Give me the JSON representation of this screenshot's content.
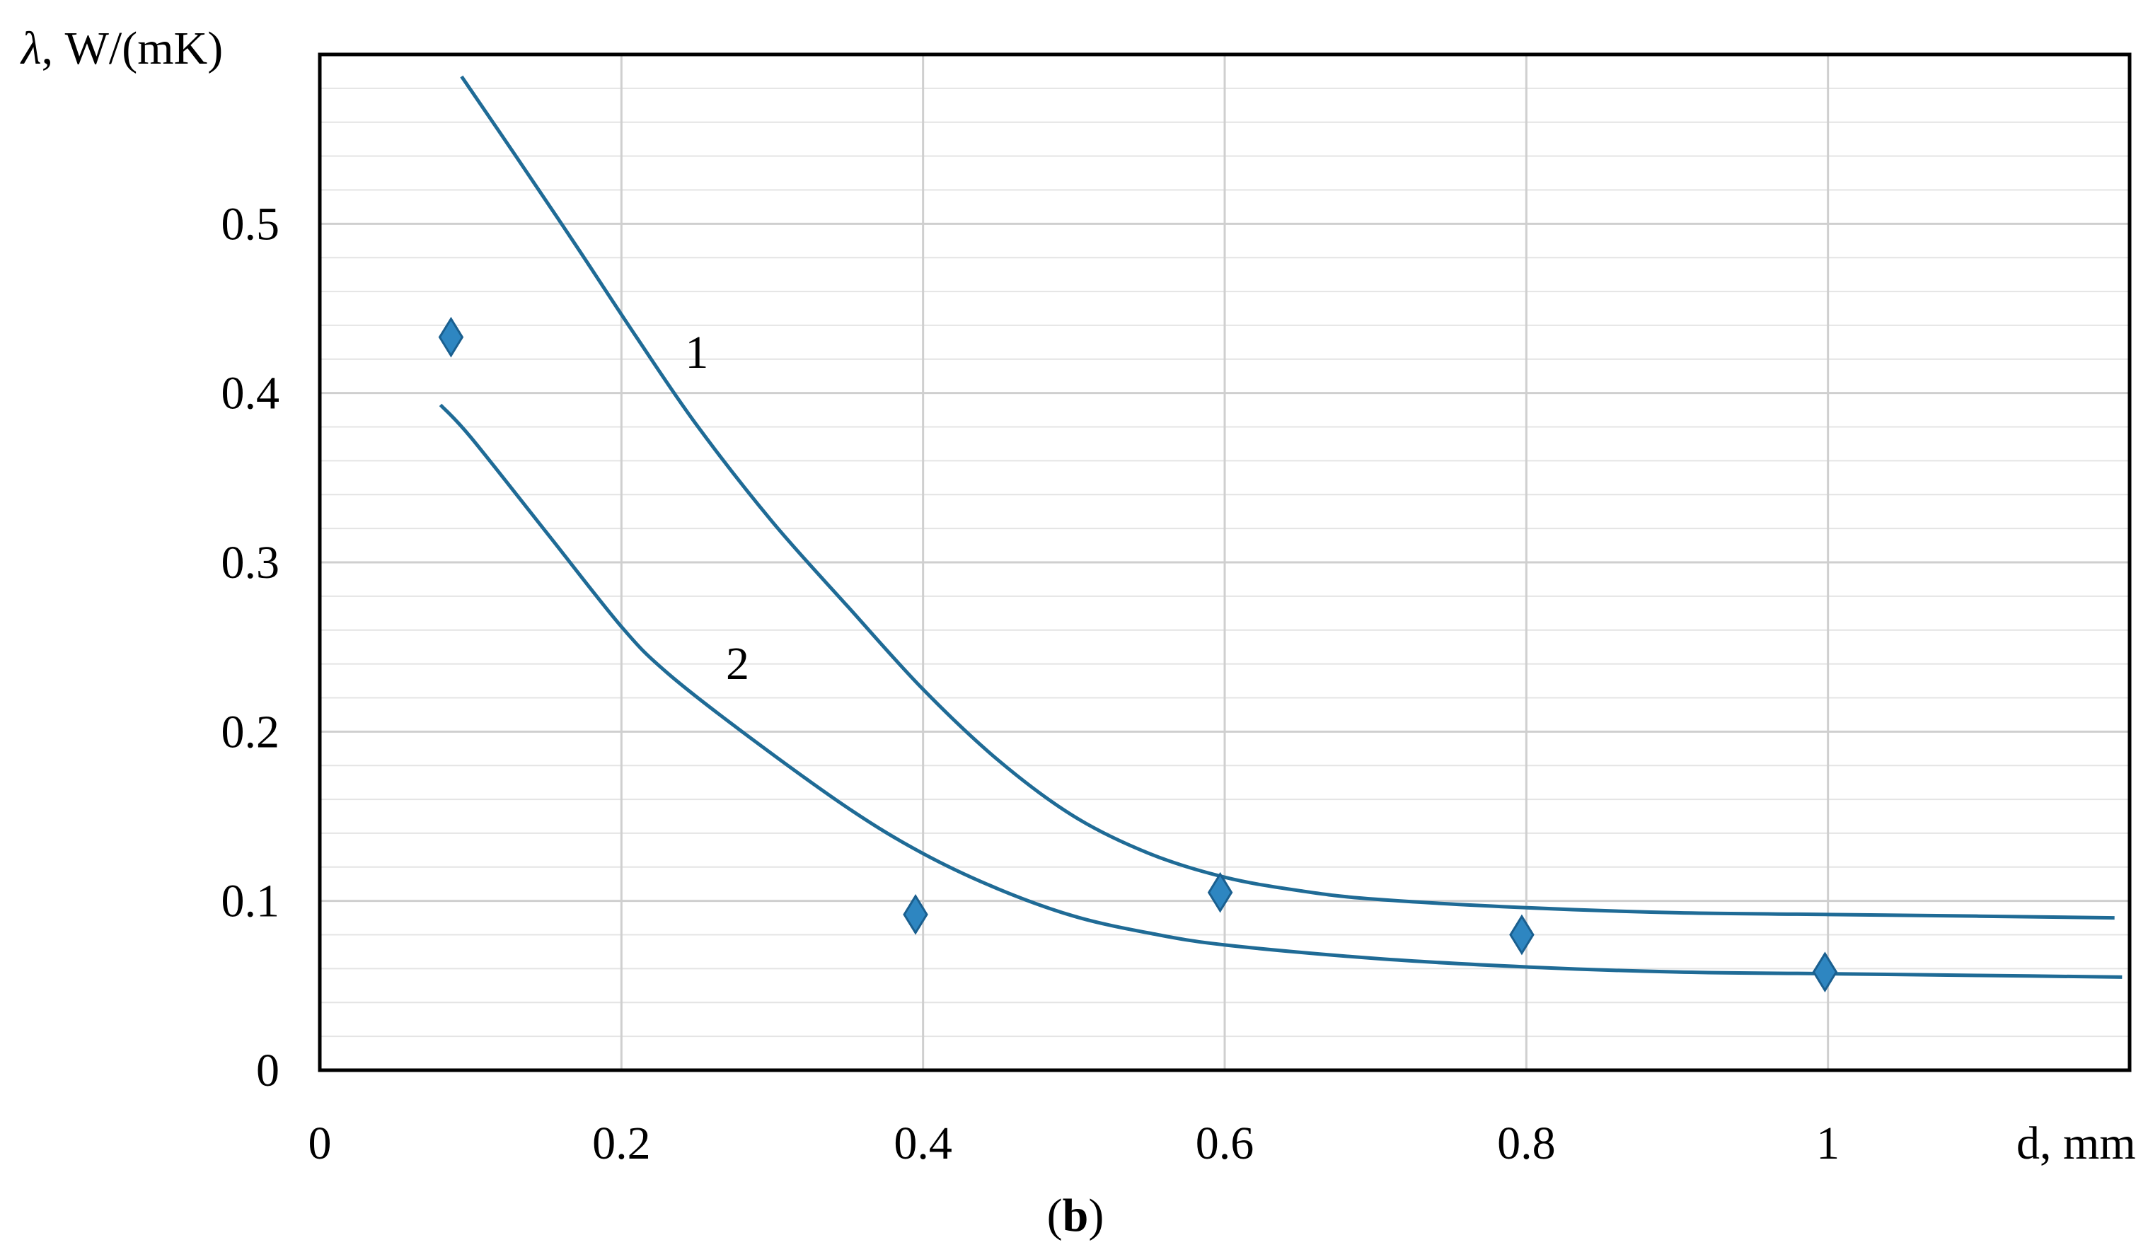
{
  "chart_data": {
    "type": "scatter",
    "ylabel_symbol": "λ",
    "ylabel_units": ", W/(mK)",
    "xlabel": "d, mm",
    "caption_open": "(",
    "caption_letter": "b",
    "caption_close": ")",
    "xlim": [
      0,
      1.2
    ],
    "ylim": [
      0,
      0.6
    ],
    "x_ticks": [
      0,
      0.2,
      0.4,
      0.6,
      0.8,
      1
    ],
    "x_tick_labels": [
      "0",
      "0.2",
      "0.4",
      "0.6",
      "0.8",
      "1"
    ],
    "y_ticks": [
      0,
      0.1,
      0.2,
      0.3,
      0.4,
      0.5
    ],
    "y_tick_labels": [
      "0",
      "0.1",
      "0.2",
      "0.3",
      "0.4",
      "0.5"
    ],
    "minor_grid_step_y": 0.02,
    "grid": true,
    "line_color": "#1f6b96",
    "marker_color": "#2e86c1",
    "marker_edge_color": "#1a5f8f",
    "points": [
      {
        "x": 0.087,
        "y": 0.433
      },
      {
        "x": 0.395,
        "y": 0.092
      },
      {
        "x": 0.597,
        "y": 0.105
      },
      {
        "x": 0.797,
        "y": 0.08
      },
      {
        "x": 0.998,
        "y": 0.058
      }
    ],
    "curves": [
      {
        "label": "1",
        "label_at": [
          0.25,
          0.415
        ],
        "x": [
          0.094,
          0.13,
          0.17,
          0.21,
          0.25,
          0.3,
          0.35,
          0.4,
          0.45,
          0.5,
          0.55,
          0.6,
          0.65,
          0.7,
          0.8,
          0.9,
          1.0,
          1.1,
          1.19
        ],
        "y": [
          0.587,
          0.54,
          0.487,
          0.433,
          0.381,
          0.324,
          0.274,
          0.225,
          0.183,
          0.15,
          0.128,
          0.114,
          0.106,
          0.101,
          0.096,
          0.093,
          0.092,
          0.091,
          0.09
        ]
      },
      {
        "label": "2",
        "label_at": [
          0.277,
          0.231
        ],
        "x": [
          0.08,
          0.1,
          0.15,
          0.2,
          0.23,
          0.28,
          0.35,
          0.4,
          0.45,
          0.5,
          0.55,
          0.6,
          0.7,
          0.8,
          0.9,
          1.0,
          1.1,
          1.195
        ],
        "y": [
          0.393,
          0.374,
          0.318,
          0.262,
          0.235,
          0.2,
          0.155,
          0.128,
          0.107,
          0.091,
          0.081,
          0.074,
          0.066,
          0.061,
          0.058,
          0.057,
          0.056,
          0.055
        ]
      }
    ]
  }
}
